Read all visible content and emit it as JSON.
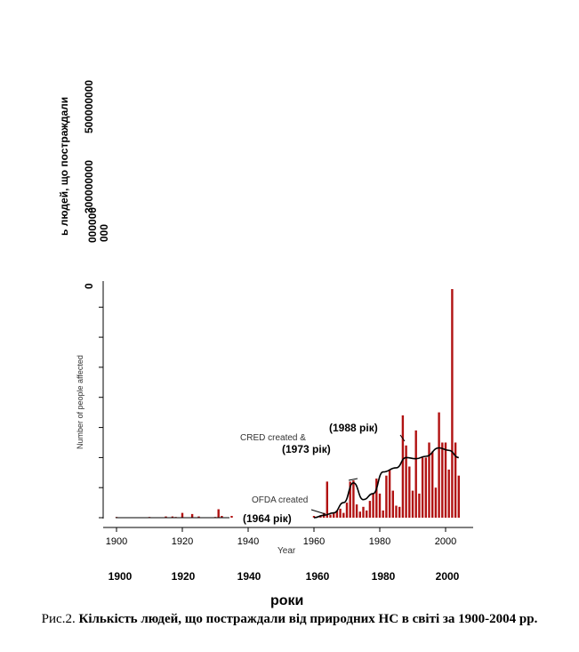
{
  "chart_data": {
    "type": "bar",
    "x_label": "Year",
    "y_label": "Number of people affected",
    "x_label_ua": "роки",
    "y_label_ua": "ь людей, що постраждали",
    "y_ticks_ua": [
      "500000000",
      "300000000",
      "000",
      "000000",
      "0"
    ],
    "x_ticks": [
      "1900",
      "1920",
      "1940",
      "1960",
      "1980",
      "2000"
    ],
    "x_ticks_overlay": [
      "1900",
      "1920",
      "1940",
      "1960",
      "1980",
      "2000"
    ],
    "annotations": [
      {
        "text": "(1964 рік)",
        "x": 1964
      },
      {
        "text": "(1973 рік)",
        "x": 1973
      },
      {
        "text": "(1988 рік)",
        "x": 1988
      },
      {
        "text": "OFDA created",
        "x": 1964
      },
      {
        "text": "CRED created &",
        "x": 1973
      }
    ],
    "x": [
      1900,
      1910,
      1915,
      1917,
      1918,
      1920,
      1923,
      1925,
      1930,
      1931,
      1932,
      1935,
      1940,
      1945,
      1950,
      1955,
      1958,
      1960,
      1961,
      1962,
      1963,
      1964,
      1965,
      1966,
      1967,
      1968,
      1969,
      1970,
      1971,
      1972,
      1973,
      1974,
      1975,
      1976,
      1977,
      1978,
      1979,
      1980,
      1981,
      1982,
      1983,
      1984,
      1985,
      1986,
      1987,
      1988,
      1989,
      1990,
      1991,
      1992,
      1993,
      1994,
      1995,
      1996,
      1997,
      1998,
      1999,
      2000,
      2001,
      2002,
      2003,
      2004
    ],
    "values": [
      0,
      1,
      2,
      2,
      1,
      8,
      6,
      2,
      1,
      14,
      3,
      3,
      1,
      1,
      2,
      1,
      3,
      3,
      2,
      4,
      8,
      60,
      5,
      8,
      12,
      15,
      8,
      25,
      60,
      62,
      22,
      10,
      18,
      12,
      28,
      40,
      65,
      40,
      12,
      70,
      80,
      45,
      20,
      18,
      170,
      120,
      85,
      45,
      145,
      40,
      100,
      100,
      125,
      110,
      50,
      175,
      125,
      125,
      80,
      380,
      125,
      70
    ],
    "values_unit": "million people",
    "trend": [
      {
        "x": 1960,
        "y": 0
      },
      {
        "x": 1963,
        "y": 4
      },
      {
        "x": 1966,
        "y": 8
      },
      {
        "x": 1969,
        "y": 25
      },
      {
        "x": 1972,
        "y": 58
      },
      {
        "x": 1975,
        "y": 30
      },
      {
        "x": 1978,
        "y": 40
      },
      {
        "x": 1981,
        "y": 76
      },
      {
        "x": 1985,
        "y": 83
      },
      {
        "x": 1988,
        "y": 100
      },
      {
        "x": 1991,
        "y": 98
      },
      {
        "x": 1994,
        "y": 102
      },
      {
        "x": 1998,
        "y": 116
      },
      {
        "x": 2001,
        "y": 112
      },
      {
        "x": 2004,
        "y": 100
      }
    ],
    "xlim": [
      1897,
      2008
    ],
    "ylim": [
      0,
      400
    ],
    "bar_color": "#b11212",
    "grid": false,
    "legend": "none"
  },
  "caption": {
    "prefix": "Рис.2.",
    "text": "Кількість людей, що постраждали від природних НС в світі за 1900-2004 рр."
  }
}
